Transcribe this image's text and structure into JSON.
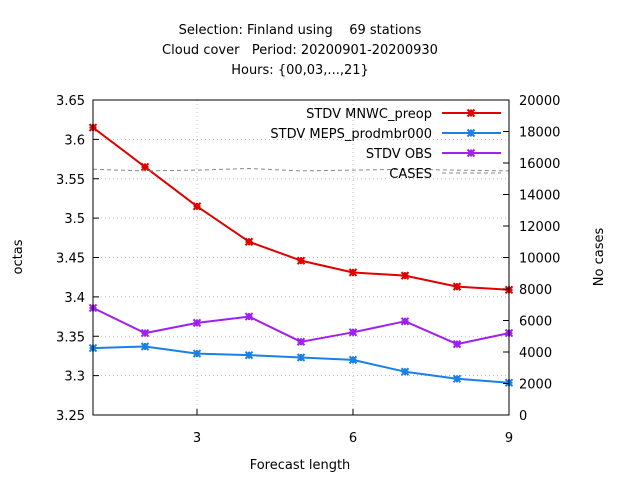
{
  "chart_data": {
    "type": "line",
    "title_lines": [
      "Selection: Finland using    69 stations",
      "Cloud cover   Period: 20200901-20200930",
      "Hours: {00,03,...,21}"
    ],
    "xlabel": "Forecast length",
    "ylabel": "octas",
    "y2label": "No cases",
    "xlim": [
      1,
      9
    ],
    "ylim": [
      3.25,
      3.65
    ],
    "y2lim": [
      0,
      20000
    ],
    "xticks": [
      3,
      6,
      9
    ],
    "yticks": [
      3.25,
      3.3,
      3.35,
      3.4,
      3.45,
      3.5,
      3.55,
      3.6,
      3.65
    ],
    "yticklabels": [
      "3.25",
      "3.3",
      "3.35",
      "3.4",
      "3.45",
      "3.5",
      "3.55",
      "3.6",
      "3.65"
    ],
    "y2ticks": [
      0,
      2000,
      4000,
      6000,
      8000,
      10000,
      12000,
      14000,
      16000,
      18000,
      20000
    ],
    "grid": true,
    "legend_position": "top-right",
    "x": [
      1,
      2,
      3,
      4,
      5,
      6,
      7,
      8,
      9
    ],
    "series": [
      {
        "name": "STDV MNWC_preop",
        "color": "#e00000",
        "marker": "x-cross",
        "axis": "y",
        "values": [
          3.615,
          3.565,
          3.515,
          3.47,
          3.446,
          3.431,
          3.427,
          3.413,
          3.409
        ]
      },
      {
        "name": "STDV MEPS_prodmbr000",
        "color": "#1a80e6",
        "marker": "x-cross",
        "axis": "y",
        "values": [
          3.335,
          3.337,
          3.328,
          3.326,
          3.323,
          3.32,
          3.305,
          3.296,
          3.291
        ]
      },
      {
        "name": "STDV OBS",
        "color": "#a020f0",
        "marker": "x-cross",
        "axis": "y",
        "values": [
          3.386,
          3.354,
          3.367,
          3.375,
          3.343,
          3.355,
          3.369,
          3.34,
          3.354
        ]
      },
      {
        "name": "CASES",
        "color": "#888888",
        "marker": "none",
        "dashed": true,
        "axis": "y2",
        "values": [
          15600,
          15500,
          15550,
          15650,
          15500,
          15550,
          15600,
          15550,
          15500
        ]
      }
    ]
  }
}
